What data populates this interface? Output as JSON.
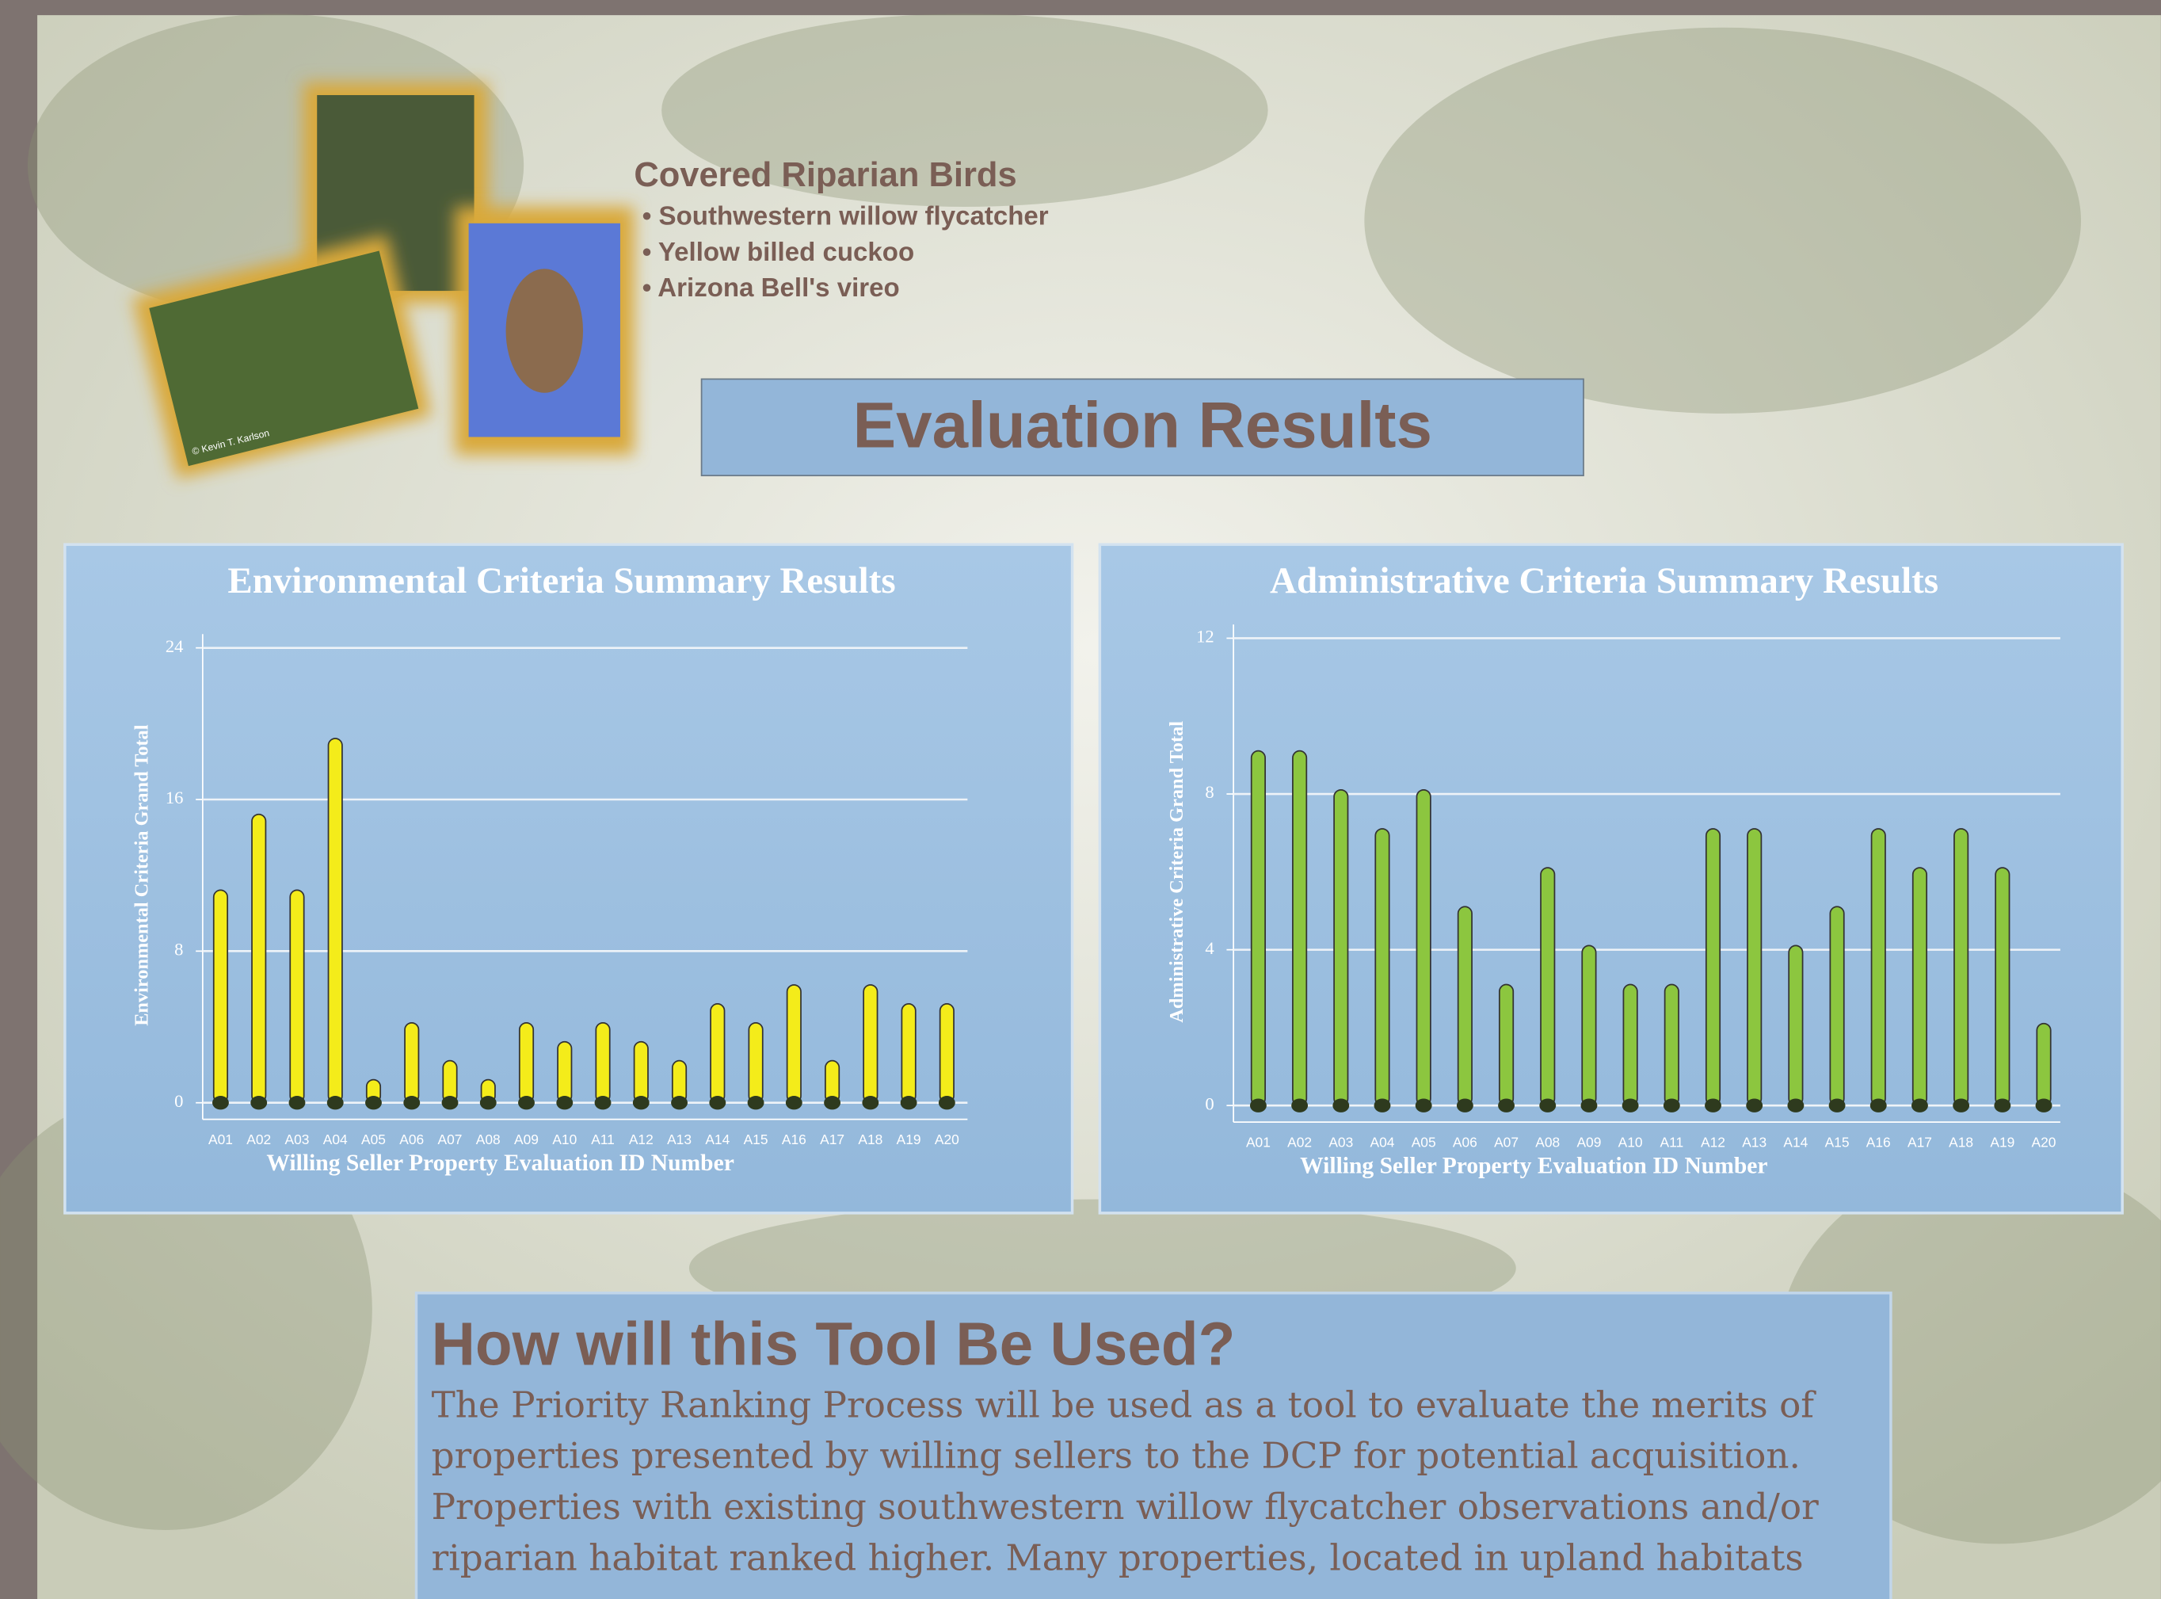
{
  "header": {
    "title": "Covered Riparian Birds",
    "items": [
      "• Southwestern willow flycatcher",
      "• Yellow billed cuckoo",
      "• Arizona Bell's vireo"
    ],
    "photo_credit": "© Kevin T. Karlson"
  },
  "section_title": "Evaluation Results",
  "chart_data": [
    {
      "type": "bar",
      "title": "Environmental Criteria Summary Results",
      "y_label": "Environmental Criteria Grand Total",
      "x_label": "Willing Seller Property Evaluation ID Number",
      "categories": [
        "A01",
        "A02",
        "A03",
        "A04",
        "A05",
        "A06",
        "A07",
        "A08",
        "A09",
        "A10",
        "A11",
        "A12",
        "A13",
        "A14",
        "A15",
        "A16",
        "A17",
        "A18",
        "A19",
        "A20"
      ],
      "values": [
        11,
        15,
        11,
        19,
        1,
        4,
        2,
        1,
        4,
        3,
        4,
        3,
        2,
        5,
        4,
        6,
        2,
        6,
        5,
        5
      ],
      "color": "#f4ec1a",
      "ylim": [
        0,
        24
      ],
      "yticks": [
        0,
        8,
        16,
        24
      ],
      "grid": true
    },
    {
      "type": "bar",
      "title": "Administrative Criteria Summary Results",
      "y_label": "Administrative Criteria Grand Total",
      "x_label": "Willing Seller Property Evaluation ID Number",
      "categories": [
        "A01",
        "A02",
        "A03",
        "A04",
        "A05",
        "A06",
        "A07",
        "A08",
        "A09",
        "A10",
        "A11",
        "A12",
        "A13",
        "A14",
        "A15",
        "A16",
        "A17",
        "A18",
        "A19",
        "A20"
      ],
      "values": [
        9,
        9,
        8,
        7,
        8,
        5,
        3,
        6,
        4,
        3,
        3,
        7,
        7,
        4,
        5,
        7,
        6,
        7,
        6,
        2
      ],
      "color": "#8cc63f",
      "ylim": [
        0,
        12
      ],
      "yticks": [
        0,
        4,
        8,
        12
      ],
      "grid": true
    }
  ],
  "tool": {
    "heading": "How will this Tool Be Used?",
    "body": "The Priority Ranking Process will be used as a tool to evaluate the merits of properties presented by willing sellers to the DCP for potential acquisition. Properties with existing southwestern willow flycatcher observations and/or riparian habitat ranked higher.  Many properties, located in upland habitats"
  }
}
